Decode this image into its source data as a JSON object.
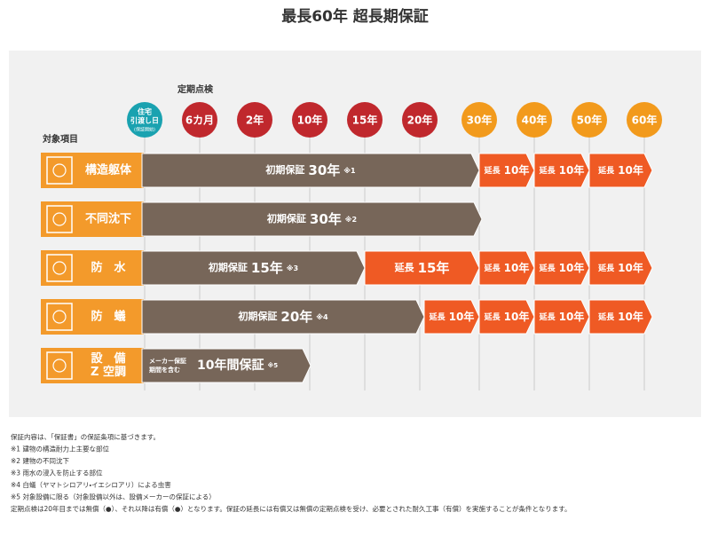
{
  "header": {
    "title": "最長60年 超長期保証"
  },
  "schedule": {
    "title": "定期点検",
    "start": {
      "lines": [
        "住宅",
        "引渡し日"
      ],
      "sub": "(保証開始)"
    },
    "points": [
      "6カ月",
      "2年",
      "10年",
      "15年",
      "20年",
      "30年",
      "40年",
      "50年",
      "60年"
    ]
  },
  "items_title": "対象項目",
  "rows": [
    {
      "lines": [
        "構造躯体"
      ],
      "segments": [
        {
          "label": "初期保証",
          "years": "30年",
          "note": "※1"
        },
        {
          "label": "延長",
          "years": "10年"
        },
        {
          "label": "延長",
          "years": "10年"
        },
        {
          "label": "延長",
          "years": "10年"
        }
      ]
    },
    {
      "lines": [
        "不同沈下"
      ],
      "segments": [
        {
          "label": "初期保証",
          "years": "30年",
          "note": "※2"
        }
      ]
    },
    {
      "lines": [
        "防　水"
      ],
      "segments": [
        {
          "label": "初期保証",
          "years": "15年",
          "note": "※3"
        },
        {
          "label": "延長",
          "years": "15年"
        },
        {
          "label": "延長",
          "years": "10年"
        },
        {
          "label": "延長",
          "years": "10年"
        },
        {
          "label": "延長",
          "years": "10年"
        }
      ]
    },
    {
      "lines": [
        "防　蟻"
      ],
      "segments": [
        {
          "label": "初期保証",
          "years": "20年",
          "note": "※4"
        },
        {
          "label": "延長",
          "years": "10年"
        },
        {
          "label": "延長",
          "years": "10年"
        },
        {
          "label": "延長",
          "years": "10年"
        },
        {
          "label": "延長",
          "years": "10年"
        }
      ]
    },
    {
      "lines": [
        "設　備",
        "Z 空調"
      ],
      "segments": [
        {
          "small": [
            "メーカー保証",
            "期間を含む"
          ],
          "years": "10年間保証",
          "note": "※5"
        }
      ]
    }
  ],
  "notes": [
    "保証内容は、「保証書」の保証条項に基づきます。",
    "※1 建物の構造耐力上主要な部位",
    "※2 建物の不同沈下",
    "※3 雨水の浸入を防止する部位",
    "※4 白蟻（ヤマトシロアリ・イエシロアリ）による虫害",
    "※5 対象設備に限る（対象設備以外は、設備メーカーの保証による）",
    "定期点検は20年目までは無償（●）、それ以降は有償（●）となります。保証の延長には有償又は無償の定期点検を受け、必要とされた耐久工事（有償）を実施することが条件となります。"
  ]
}
